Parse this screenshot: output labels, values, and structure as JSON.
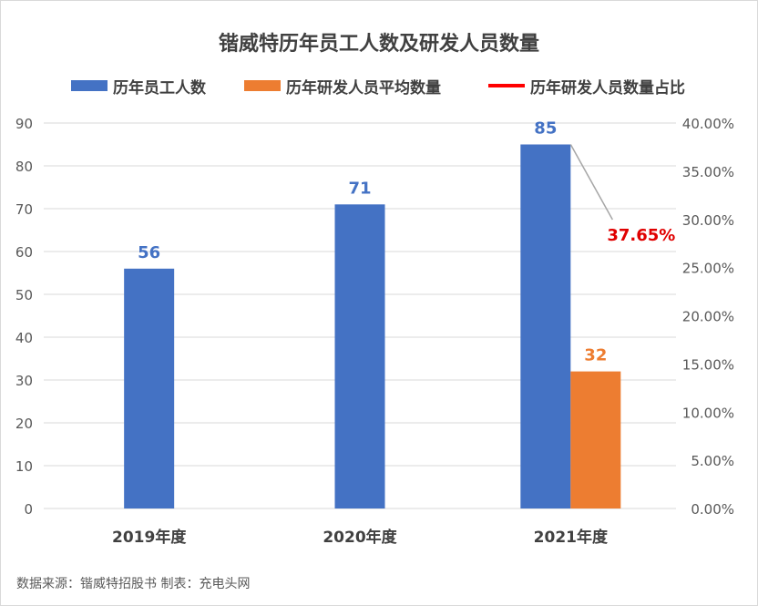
{
  "chart_data": {
    "type": "bar",
    "title": "锴威特历年员工人数及研发人员数量",
    "categories": [
      "2019年度",
      "2020年度",
      "2021年度"
    ],
    "series": [
      {
        "name": "历年员工人数",
        "type": "bar",
        "axis": "left",
        "color": "#4472c4",
        "values": [
          56,
          71,
          85
        ]
      },
      {
        "name": "历年研发人员平均数量",
        "type": "bar",
        "axis": "left",
        "color": "#ed7d31",
        "values": [
          null,
          null,
          32
        ]
      },
      {
        "name": "历年研发人员数量占比",
        "type": "line",
        "axis": "right",
        "color": "#ff0000",
        "values": [
          null,
          null,
          37.65
        ]
      }
    ],
    "data_labels": [
      "56",
      "71",
      "85",
      "32",
      "37.65%"
    ],
    "y_left": {
      "ylim": [
        0,
        90
      ],
      "ticks": [
        "0",
        "10",
        "20",
        "30",
        "40",
        "50",
        "60",
        "70",
        "80",
        "90"
      ]
    },
    "y_right": {
      "ylim": [
        0,
        40
      ],
      "ticks": [
        "0.00%",
        "5.00%",
        "10.00%",
        "15.00%",
        "20.00%",
        "25.00%",
        "30.00%",
        "35.00%",
        "40.00%"
      ]
    },
    "grid": true,
    "legend_position": "top"
  },
  "source_text": "数据来源：锴威特招股书   制表：充电头网"
}
